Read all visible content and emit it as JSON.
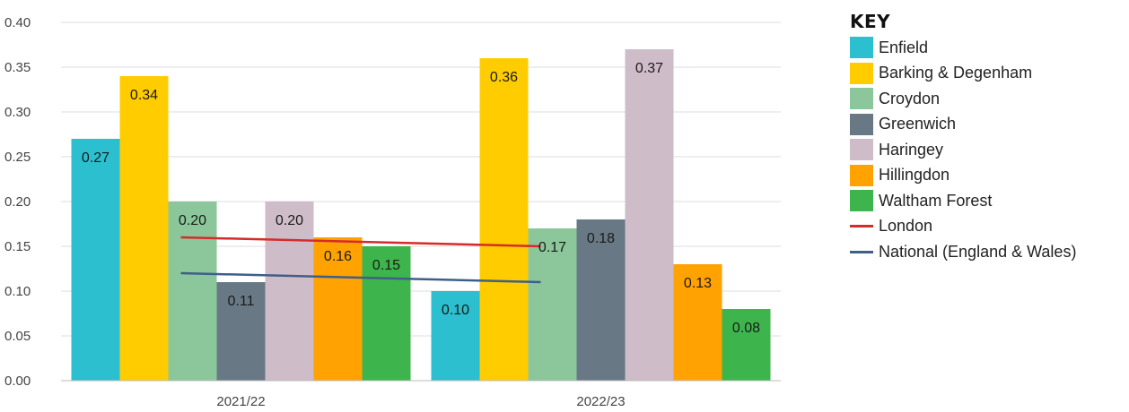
{
  "chart_data": {
    "type": "bar",
    "title": "",
    "xlabel": "",
    "ylabel": "",
    "ylim": [
      0,
      0.4
    ],
    "yticks": [
      "0.00",
      "0.05",
      "0.10",
      "0.15",
      "0.20",
      "0.25",
      "0.30",
      "0.35",
      "0.40"
    ],
    "grid": true,
    "legend_title": "KEY",
    "legend_position": "right",
    "categories": [
      "2021/22",
      "2022/23"
    ],
    "series": [
      {
        "name": "Enfield",
        "values": [
          0.27,
          0.1
        ],
        "labels": [
          "0.27",
          "0.10"
        ],
        "color": "#2bbfcf"
      },
      {
        "name": "Barking & Degenham",
        "values": [
          0.34,
          0.36
        ],
        "labels": [
          "0.34",
          "0.36"
        ],
        "color": "#ffcc00"
      },
      {
        "name": "Croydon",
        "values": [
          0.2,
          0.17
        ],
        "labels": [
          "0.20",
          "0.17"
        ],
        "color": "#8bc79a"
      },
      {
        "name": "Greenwich",
        "values": [
          0.11,
          0.18
        ],
        "labels": [
          "0.11",
          "0.18"
        ],
        "color": "#687985"
      },
      {
        "name": "Haringey",
        "values": [
          0.2,
          0.37
        ],
        "labels": [
          "0.20",
          "0.37"
        ],
        "color": "#cfbcc9"
      },
      {
        "name": "Hillingdon",
        "values": [
          0.16,
          0.13
        ],
        "labels": [
          "0.16",
          "0.13"
        ],
        "color": "#ffa202"
      },
      {
        "name": "Waltham Forest",
        "values": [
          0.15,
          0.08
        ],
        "labels": [
          "0.15",
          "0.08"
        ],
        "color": "#3db54c"
      }
    ],
    "lines": [
      {
        "name": "London",
        "values": [
          0.16,
          0.15
        ],
        "color": "#d62b2b"
      },
      {
        "name": "National (England & Wales)",
        "values": [
          0.12,
          0.11
        ],
        "color": "#3e5f8a"
      }
    ]
  }
}
